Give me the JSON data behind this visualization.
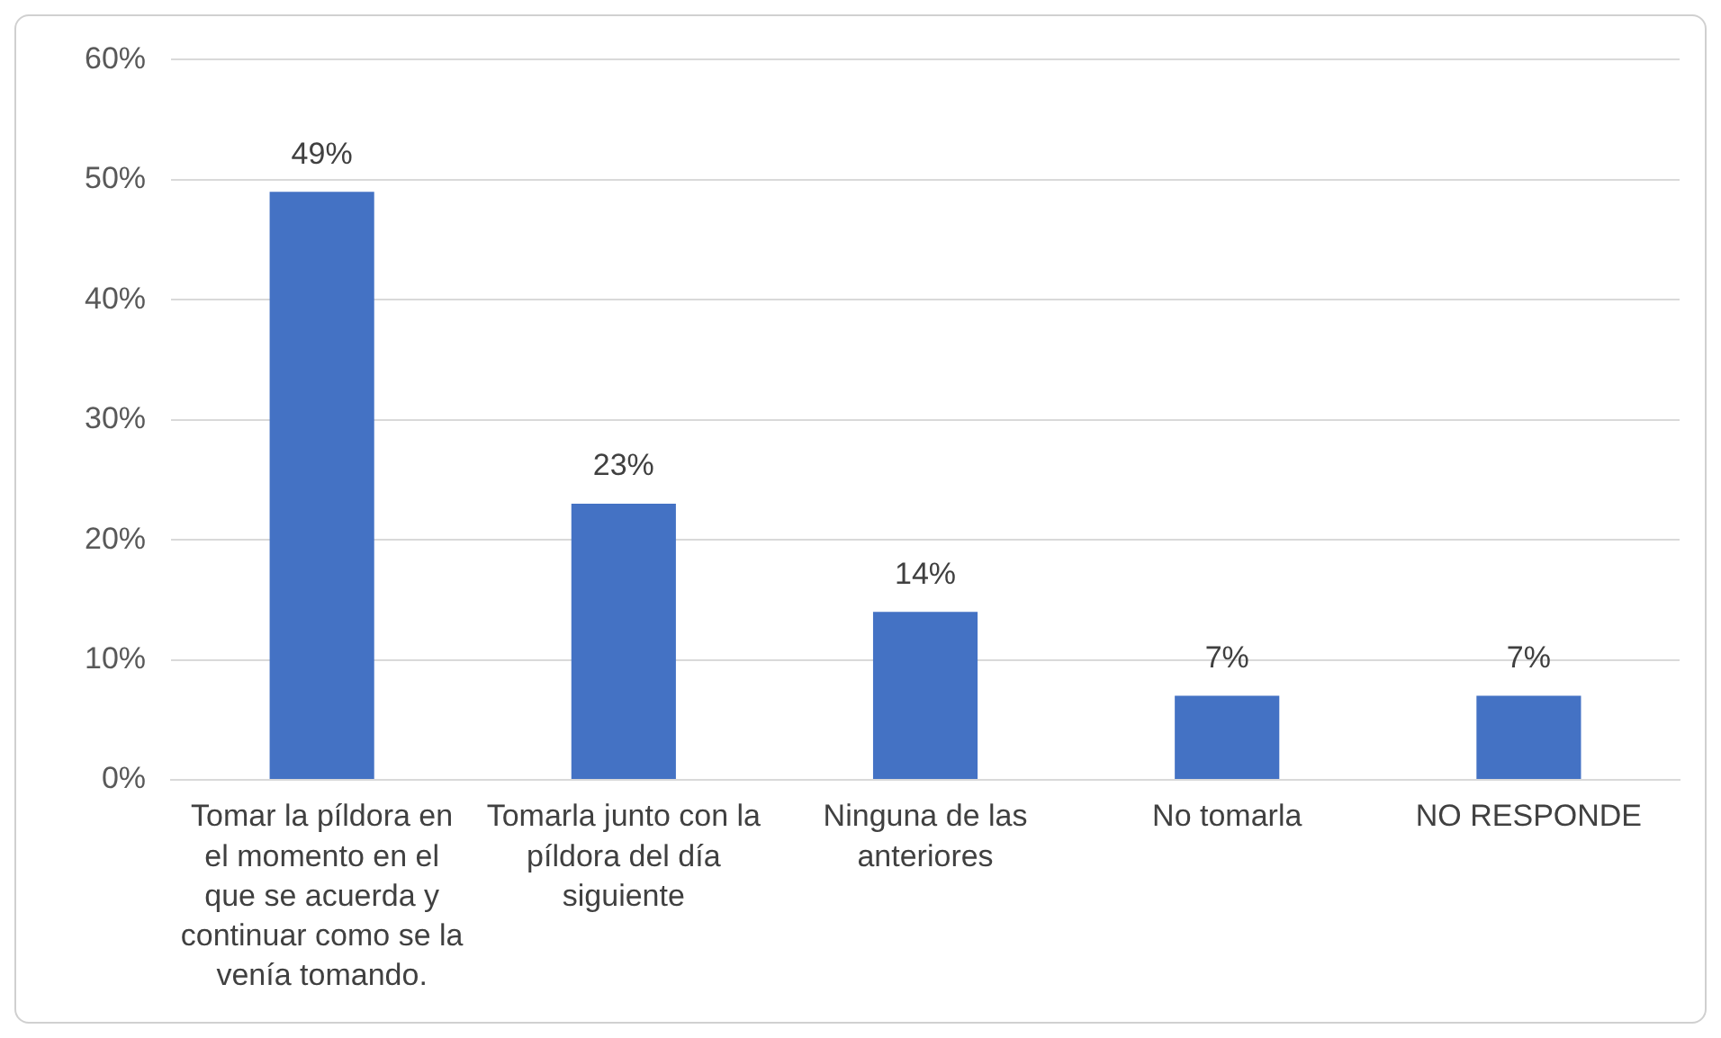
{
  "chart_data": {
    "type": "bar",
    "categories": [
      "Tomar la píldora en el momento en el que se acuerda y continuar como se la venía tomando.",
      "Tomarla junto con la píldora del día siguiente",
      "Ninguna de las anteriores",
      "No tomarla",
      "NO RESPONDE"
    ],
    "values": [
      49,
      23,
      14,
      7,
      7
    ],
    "value_labels": [
      "49%",
      "23%",
      "14%",
      "7%",
      "7%"
    ],
    "color": "#4472c4",
    "ylim": [
      0,
      60
    ],
    "yticks": [
      {
        "value": 0,
        "label": "0%"
      },
      {
        "value": 10,
        "label": "10%"
      },
      {
        "value": 20,
        "label": "20%"
      },
      {
        "value": 30,
        "label": "30%"
      },
      {
        "value": 40,
        "label": "40%"
      },
      {
        "value": 50,
        "label": "50%"
      },
      {
        "value": 60,
        "label": "60%"
      }
    ],
    "grid": "y",
    "legend": false
  }
}
